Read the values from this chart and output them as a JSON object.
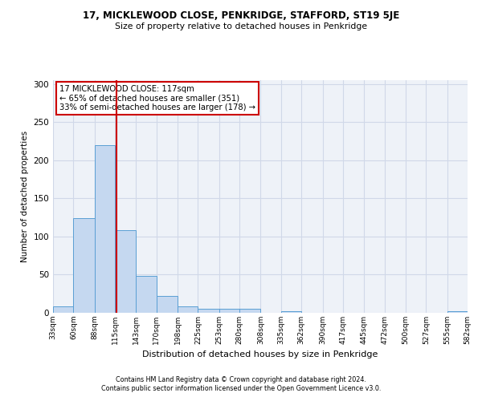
{
  "title1": "17, MICKLEWOOD CLOSE, PENKRIDGE, STAFFORD, ST19 5JE",
  "title2": "Size of property relative to detached houses in Penkridge",
  "xlabel": "Distribution of detached houses by size in Penkridge",
  "ylabel": "Number of detached properties",
  "footnote1": "Contains HM Land Registry data © Crown copyright and database right 2024.",
  "footnote2": "Contains public sector information licensed under the Open Government Licence v3.0.",
  "bar_edges": [
    33,
    60,
    88,
    115,
    143,
    170,
    198,
    225,
    253,
    280,
    308,
    335,
    362,
    390,
    417,
    445,
    472,
    500,
    527,
    555,
    582
  ],
  "bar_heights": [
    8,
    124,
    220,
    108,
    48,
    22,
    8,
    5,
    5,
    5,
    0,
    2,
    0,
    0,
    0,
    0,
    0,
    0,
    0,
    2
  ],
  "bar_color": "#c5d8f0",
  "bar_edgecolor": "#5a9fd4",
  "property_size": 117,
  "annotation_text": "17 MICKLEWOOD CLOSE: 117sqm\n← 65% of detached houses are smaller (351)\n33% of semi-detached houses are larger (178) →",
  "vline_color": "#cc0000",
  "annotation_box_edgecolor": "#cc0000",
  "grid_color": "#d0d8e8",
  "background_color": "#eef2f8",
  "ylim": [
    0,
    305
  ],
  "yticks": [
    0,
    50,
    100,
    150,
    200,
    250,
    300
  ]
}
